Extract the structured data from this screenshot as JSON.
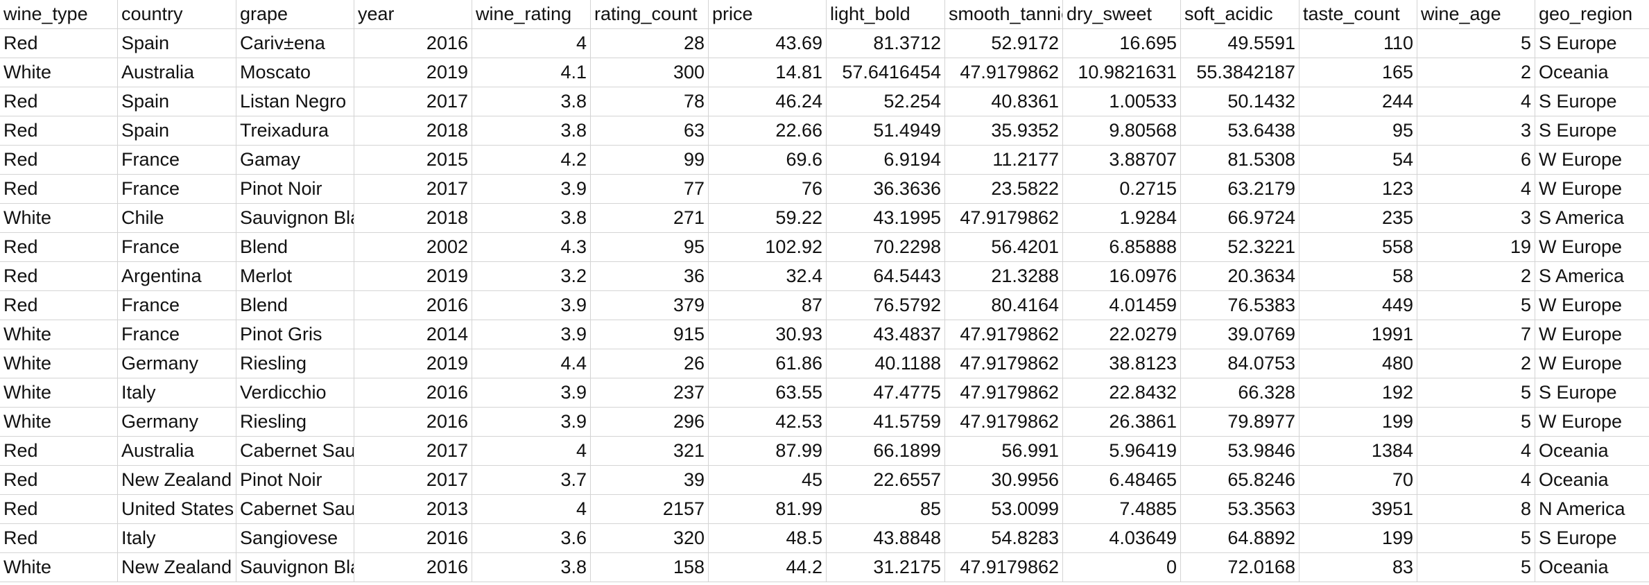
{
  "sheet": {
    "headers": [
      "wine_type",
      "country",
      "grape",
      "year",
      "wine_rating",
      "rating_count",
      "price",
      "light_bold",
      "smooth_tannic",
      "dry_sweet",
      "soft_acidic",
      "taste_count",
      "wine_age",
      "geo_region"
    ],
    "rows": [
      [
        "Red",
        "Spain",
        "Cariv±ena",
        "2016",
        "4",
        "28",
        "43.69",
        "81.3712",
        "52.9172",
        "16.695",
        "49.5591",
        "110",
        "5",
        "S Europe"
      ],
      [
        "White",
        "Australia",
        "Moscato",
        "2019",
        "4.1",
        "300",
        "14.81",
        "57.6416454",
        "47.9179862",
        "10.9821631",
        "55.3842187",
        "165",
        "2",
        "Oceania"
      ],
      [
        "Red",
        "Spain",
        "Listan Negro",
        "2017",
        "3.8",
        "78",
        "46.24",
        "52.254",
        "40.8361",
        "1.00533",
        "50.1432",
        "244",
        "4",
        "S Europe"
      ],
      [
        "Red",
        "Spain",
        "Treixadura",
        "2018",
        "3.8",
        "63",
        "22.66",
        "51.4949",
        "35.9352",
        "9.80568",
        "53.6438",
        "95",
        "3",
        "S Europe"
      ],
      [
        "Red",
        "France",
        "Gamay",
        "2015",
        "4.2",
        "99",
        "69.6",
        "6.9194",
        "11.2177",
        "3.88707",
        "81.5308",
        "54",
        "6",
        "W Europe"
      ],
      [
        "Red",
        "France",
        "Pinot Noir",
        "2017",
        "3.9",
        "77",
        "76",
        "36.3636",
        "23.5822",
        "0.2715",
        "63.2179",
        "123",
        "4",
        "W Europe"
      ],
      [
        "White",
        "Chile",
        "Sauvignon Blanc",
        "2018",
        "3.8",
        "271",
        "59.22",
        "43.1995",
        "47.9179862",
        "1.9284",
        "66.9724",
        "235",
        "3",
        "S America"
      ],
      [
        "Red",
        "France",
        "Blend",
        "2002",
        "4.3",
        "95",
        "102.92",
        "70.2298",
        "56.4201",
        "6.85888",
        "52.3221",
        "558",
        "19",
        "W Europe"
      ],
      [
        "Red",
        "Argentina",
        "Merlot",
        "2019",
        "3.2",
        "36",
        "32.4",
        "64.5443",
        "21.3288",
        "16.0976",
        "20.3634",
        "58",
        "2",
        "S America"
      ],
      [
        "Red",
        "France",
        "Blend",
        "2016",
        "3.9",
        "379",
        "87",
        "76.5792",
        "80.4164",
        "4.01459",
        "76.5383",
        "449",
        "5",
        "W Europe"
      ],
      [
        "White",
        "France",
        "Pinot Gris",
        "2014",
        "3.9",
        "915",
        "30.93",
        "43.4837",
        "47.9179862",
        "22.0279",
        "39.0769",
        "1991",
        "7",
        "W Europe"
      ],
      [
        "White",
        "Germany",
        "Riesling",
        "2019",
        "4.4",
        "26",
        "61.86",
        "40.1188",
        "47.9179862",
        "38.8123",
        "84.0753",
        "480",
        "2",
        "W Europe"
      ],
      [
        "White",
        "Italy",
        "Verdicchio",
        "2016",
        "3.9",
        "237",
        "63.55",
        "47.4775",
        "47.9179862",
        "22.8432",
        "66.328",
        "192",
        "5",
        "S Europe"
      ],
      [
        "White",
        "Germany",
        "Riesling",
        "2016",
        "3.9",
        "296",
        "42.53",
        "41.5759",
        "47.9179862",
        "26.3861",
        "79.8977",
        "199",
        "5",
        "W Europe"
      ],
      [
        "Red",
        "Australia",
        "Cabernet Sauvignon",
        "2017",
        "4",
        "321",
        "87.99",
        "66.1899",
        "56.991",
        "5.96419",
        "53.9846",
        "1384",
        "4",
        "Oceania"
      ],
      [
        "Red",
        "New Zealand",
        "Pinot Noir",
        "2017",
        "3.7",
        "39",
        "45",
        "22.6557",
        "30.9956",
        "6.48465",
        "65.8246",
        "70",
        "4",
        "Oceania"
      ],
      [
        "Red",
        "United States",
        "Cabernet Sauvignon",
        "2013",
        "4",
        "2157",
        "81.99",
        "85",
        "53.0099",
        "7.4885",
        "53.3563",
        "3951",
        "8",
        "N America"
      ],
      [
        "Red",
        "Italy",
        "Sangiovese",
        "2016",
        "3.6",
        "320",
        "48.5",
        "43.8848",
        "54.8283",
        "4.03649",
        "64.8892",
        "199",
        "5",
        "S Europe"
      ],
      [
        "White",
        "New Zealand",
        "Sauvignon Blanc",
        "2016",
        "3.8",
        "158",
        "44.2",
        "31.2175",
        "47.9179862",
        "0",
        "72.0168",
        "83",
        "5",
        "Oceania"
      ]
    ]
  }
}
